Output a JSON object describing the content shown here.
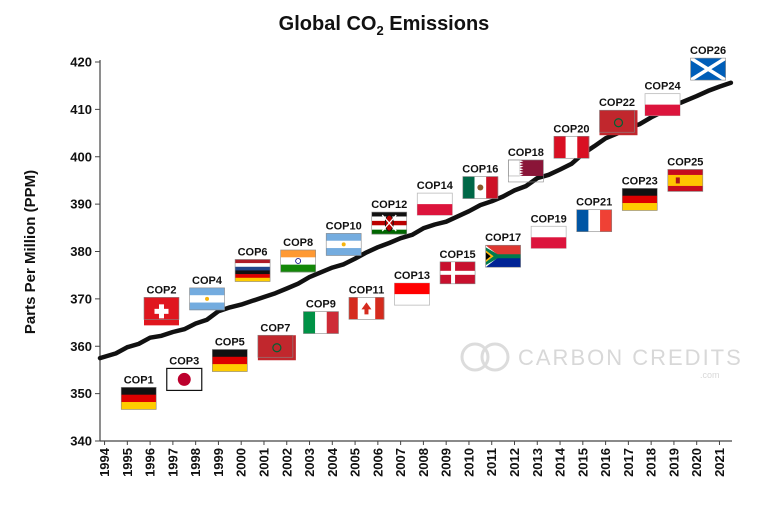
{
  "chart_data": {
    "type": "line",
    "title": "Global CO",
    "title_sub": "2",
    "title_rest": " Emissions",
    "xlabel": "",
    "ylabel": "Parts Per Million (PPM)",
    "ylim": [
      340,
      420
    ],
    "y_ticks": [
      "340",
      "350",
      "360",
      "370",
      "380",
      "390",
      "400",
      "410",
      "420"
    ],
    "x_ticks": [
      "1994",
      "1995",
      "1996",
      "1997",
      "1998",
      "1999",
      "2000",
      "2001",
      "2002",
      "2003",
      "2004",
      "2005",
      "2006",
      "2007",
      "2008",
      "2009",
      "2010",
      "2011",
      "2012",
      "2013",
      "2014",
      "2015",
      "2016",
      "2017",
      "2018",
      "2019",
      "2020",
      "2021"
    ],
    "series": [
      {
        "name": "CO2 concentration",
        "x": [
          1993.8,
          1994.5,
          1995,
          1995.5,
          1996,
          1996.5,
          1997,
          1997.5,
          1998,
          1998.5,
          1999,
          1999.5,
          2000,
          2000.5,
          2001,
          2001.5,
          2002,
          2002.5,
          2003,
          2003.5,
          2004,
          2004.5,
          2005,
          2005.5,
          2006,
          2006.5,
          2007,
          2007.5,
          2008,
          2008.5,
          2009,
          2009.5,
          2010,
          2010.5,
          2011,
          2011.5,
          2012,
          2012.5,
          2013,
          2013.5,
          2014,
          2014.5,
          2015,
          2015.5,
          2016,
          2016.5,
          2017,
          2017.5,
          2018,
          2018.5,
          2019,
          2019.5,
          2020,
          2020.5,
          2021,
          2021.5
        ],
        "values": [
          357.5,
          358.5,
          359.8,
          360.5,
          361.8,
          362.2,
          363,
          363.6,
          364.8,
          365.6,
          367.4,
          368.2,
          368.8,
          369.6,
          370.4,
          371.2,
          372.2,
          373.2,
          374.6,
          375.6,
          376.6,
          377.3,
          378.5,
          379.8,
          380.9,
          381.8,
          382.8,
          383.5,
          384.9,
          385.7,
          386.3,
          387.4,
          388.5,
          389.8,
          390.6,
          391.6,
          392.9,
          393.8,
          395.5,
          396.2,
          397.3,
          398.5,
          400.6,
          402.2,
          403.9,
          404.9,
          406.1,
          406.9,
          408.3,
          409.5,
          410.8,
          411.8,
          412.8,
          413.9,
          414.8,
          415.6
        ]
      }
    ],
    "annotations": [
      {
        "label": "COP1",
        "year": 1995.5,
        "value": 349,
        "flag": "germany"
      },
      {
        "label": "COP2",
        "year": 1996.5,
        "value": 368,
        "flag": "switzerland"
      },
      {
        "label": "COP3",
        "year": 1997.5,
        "value": 353,
        "flag": "japan"
      },
      {
        "label": "COP4",
        "year": 1998.5,
        "value": 370,
        "flag": "argentina"
      },
      {
        "label": "COP5",
        "year": 1999.5,
        "value": 357,
        "flag": "germany"
      },
      {
        "label": "COP6",
        "year": 2000.5,
        "value": 376,
        "flag": "netherlands_germany"
      },
      {
        "label": "COP7",
        "year": 2001.5,
        "value": 360,
        "flag": "morocco"
      },
      {
        "label": "COP8",
        "year": 2002.5,
        "value": 378,
        "flag": "india"
      },
      {
        "label": "COP9",
        "year": 2003.5,
        "value": 365,
        "flag": "italy"
      },
      {
        "label": "COP10",
        "year": 2004.5,
        "value": 381.5,
        "flag": "argentina"
      },
      {
        "label": "COP11",
        "year": 2005.5,
        "value": 368,
        "flag": "canada"
      },
      {
        "label": "COP12",
        "year": 2006.5,
        "value": 386,
        "flag": "kenya"
      },
      {
        "label": "COP13",
        "year": 2007.5,
        "value": 371,
        "flag": "indonesia"
      },
      {
        "label": "COP14",
        "year": 2008.5,
        "value": 390,
        "flag": "poland"
      },
      {
        "label": "COP15",
        "year": 2009.5,
        "value": 375.5,
        "flag": "denmark"
      },
      {
        "label": "COP16",
        "year": 2010.5,
        "value": 393.5,
        "flag": "mexico"
      },
      {
        "label": "COP17",
        "year": 2011.5,
        "value": 379,
        "flag": "south_africa"
      },
      {
        "label": "COP18",
        "year": 2012.5,
        "value": 397,
        "flag": "qatar"
      },
      {
        "label": "COP19",
        "year": 2013.5,
        "value": 383,
        "flag": "poland"
      },
      {
        "label": "COP20",
        "year": 2014.5,
        "value": 402,
        "flag": "peru"
      },
      {
        "label": "COP21",
        "year": 2015.5,
        "value": 386.5,
        "flag": "france"
      },
      {
        "label": "COP22",
        "year": 2016.5,
        "value": 407.5,
        "flag": "morocco"
      },
      {
        "label": "COP23",
        "year": 2017.5,
        "value": 391,
        "flag": "germany"
      },
      {
        "label": "COP24",
        "year": 2018.5,
        "value": 411,
        "flag": "poland"
      },
      {
        "label": "COP25",
        "year": 2019.5,
        "value": 395,
        "flag": "spain"
      },
      {
        "label": "COP26",
        "year": 2020.5,
        "value": 418.5,
        "flag": "scotland"
      }
    ],
    "watermark": "CARBON CREDITS",
    "watermark_sub": ".com",
    "line_color": "#111111"
  }
}
